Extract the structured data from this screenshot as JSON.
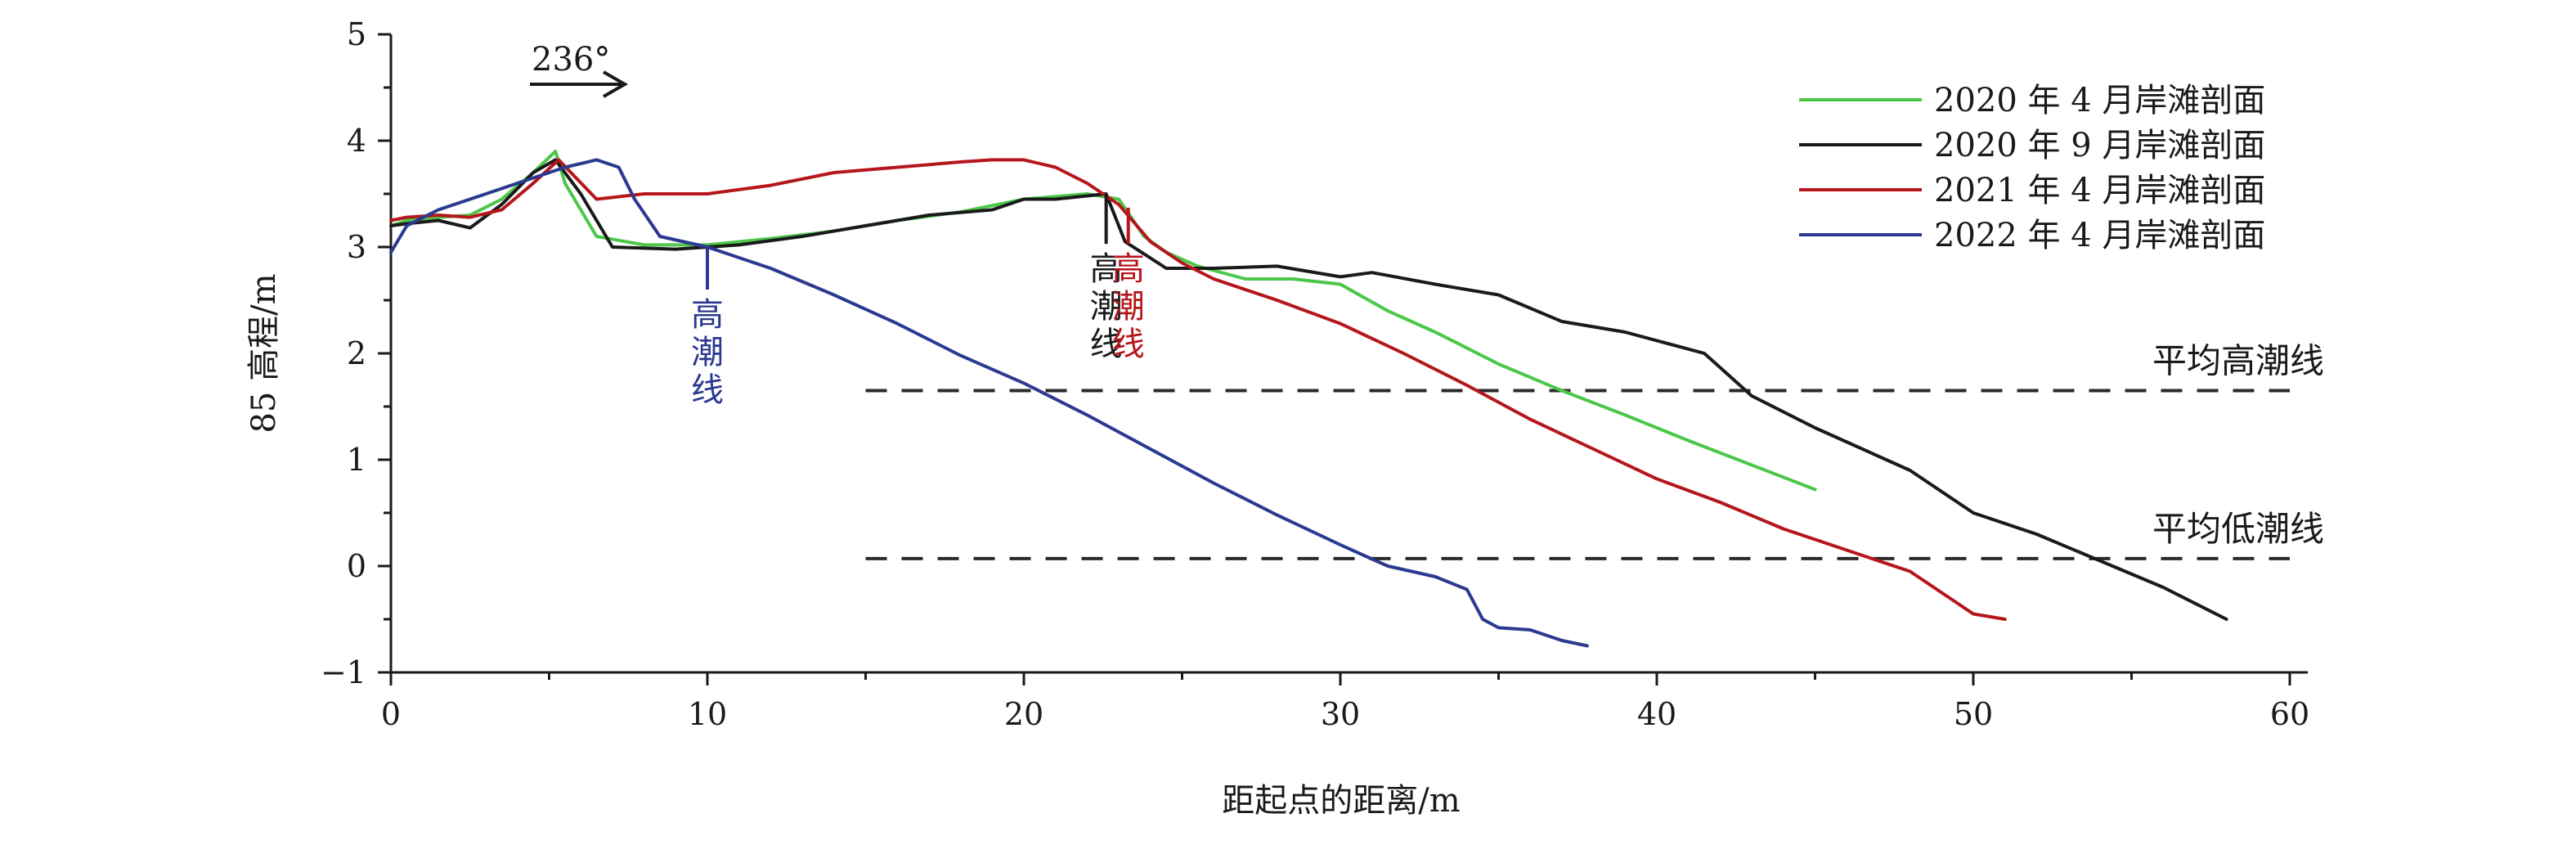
{
  "chart_data": {
    "type": "line",
    "title": "",
    "xlabel": "距起点的距离/m",
    "ylabel": "85 高程/m",
    "xlim": [
      0,
      60
    ],
    "ylim": [
      -1,
      5
    ],
    "x_ticks": [
      "0",
      "10",
      "20",
      "30",
      "40",
      "50",
      "60"
    ],
    "y_ticks": [
      "5",
      "4",
      "3",
      "2",
      "1",
      "0",
      "−1"
    ],
    "grid": false,
    "legend_position": "top-right",
    "direction_annotation": {
      "label": "236°",
      "x": 5,
      "y": 4.55
    },
    "mean_high_tide": {
      "label": "平均高潮线",
      "y": 1.65,
      "x_start": 15,
      "x_end": 60
    },
    "mean_low_tide": {
      "label": "平均低潮线",
      "y": 0.07,
      "x_start": 15,
      "x_end": 60
    },
    "high_tide_markers": [
      {
        "chars": [
          "高",
          "潮",
          "线"
        ],
        "x": 10,
        "y_top": 3.0,
        "y_bottom": 2.6,
        "color": "#2b3990"
      },
      {
        "chars": [
          "高",
          "潮",
          "线"
        ],
        "x": 22.6,
        "y_top": 3.5,
        "y_bottom": 3.03,
        "color": "#1a1a1a"
      },
      {
        "chars": [
          "高",
          "潮",
          "线"
        ],
        "x": 23.3,
        "y_top": 3.37,
        "y_bottom": 3.03,
        "color": "#b5161b"
      }
    ],
    "series": [
      {
        "name": "2020 年 4 月岸滩剖面",
        "color": "#4cc74a",
        "x": [
          0,
          0.5,
          1.5,
          2.5,
          3.5,
          4.5,
          5.2,
          5.5,
          6.5,
          8,
          10,
          12,
          14,
          16,
          18,
          20,
          22,
          23,
          23.8,
          24.5,
          25.5,
          27,
          28.5,
          30,
          31.5,
          33,
          35,
          37,
          39,
          41,
          43,
          45
        ],
        "y": [
          3.2,
          3.25,
          3.28,
          3.3,
          3.45,
          3.7,
          3.9,
          3.6,
          3.1,
          3.02,
          3.02,
          3.08,
          3.15,
          3.25,
          3.33,
          3.45,
          3.5,
          3.45,
          3.1,
          2.95,
          2.82,
          2.7,
          2.7,
          2.65,
          2.4,
          2.2,
          1.9,
          1.65,
          1.42,
          1.18,
          0.95,
          0.72
        ]
      },
      {
        "name": "2020 年 9 月岸滩剖面",
        "color": "#1a1a1a",
        "x": [
          0,
          0.5,
          1.5,
          2.5,
          3.5,
          4.5,
          5.2,
          6,
          7,
          9,
          11,
          13,
          15,
          17,
          19,
          20,
          21,
          22.6,
          23.2,
          24.5,
          26,
          28,
          30,
          31,
          33,
          35,
          37,
          39,
          41.5,
          43,
          45,
          48,
          50,
          52,
          54,
          56,
          58
        ],
        "y": [
          3.2,
          3.22,
          3.25,
          3.18,
          3.4,
          3.7,
          3.82,
          3.5,
          3.0,
          2.98,
          3.02,
          3.1,
          3.2,
          3.3,
          3.35,
          3.45,
          3.45,
          3.5,
          3.05,
          2.8,
          2.8,
          2.82,
          2.72,
          2.76,
          2.65,
          2.55,
          2.3,
          2.2,
          2.0,
          1.6,
          1.3,
          0.9,
          0.5,
          0.3,
          0.05,
          -0.2,
          -0.5
        ]
      },
      {
        "name": "2021 年 4 月岸滩剖面",
        "color": "#b5161b",
        "x": [
          0,
          0.5,
          1.5,
          2.5,
          3.5,
          4.5,
          5.3,
          6.5,
          8,
          10,
          12,
          14,
          16,
          18,
          19,
          20,
          21,
          22,
          23,
          24,
          25,
          26,
          28,
          30,
          32,
          34,
          36,
          38,
          40,
          42,
          44,
          46,
          48,
          50,
          51
        ],
        "y": [
          3.25,
          3.28,
          3.3,
          3.28,
          3.35,
          3.6,
          3.82,
          3.45,
          3.5,
          3.5,
          3.58,
          3.7,
          3.75,
          3.8,
          3.82,
          3.82,
          3.75,
          3.6,
          3.4,
          3.05,
          2.85,
          2.7,
          2.5,
          2.28,
          2.0,
          1.7,
          1.38,
          1.1,
          0.82,
          0.6,
          0.35,
          0.15,
          -0.05,
          -0.45,
          -0.5
        ]
      },
      {
        "name": "2022 年 4 月岸滩剖面",
        "color": "#2b3990",
        "x": [
          0,
          0.5,
          1.5,
          2.5,
          3.5,
          4.5,
          5.5,
          6.5,
          7.2,
          7.7,
          8.5,
          10,
          12,
          14,
          16,
          18,
          20,
          22,
          24,
          26,
          28,
          30,
          31.5,
          33,
          34,
          34.5,
          35,
          36,
          37,
          37.8
        ],
        "y": [
          2.95,
          3.2,
          3.35,
          3.45,
          3.55,
          3.65,
          3.75,
          3.82,
          3.75,
          3.45,
          3.1,
          3.0,
          2.8,
          2.55,
          2.28,
          1.98,
          1.72,
          1.42,
          1.1,
          0.78,
          0.48,
          0.2,
          0.0,
          -0.1,
          -0.22,
          -0.5,
          -0.58,
          -0.6,
          -0.7,
          -0.75
        ]
      }
    ]
  }
}
